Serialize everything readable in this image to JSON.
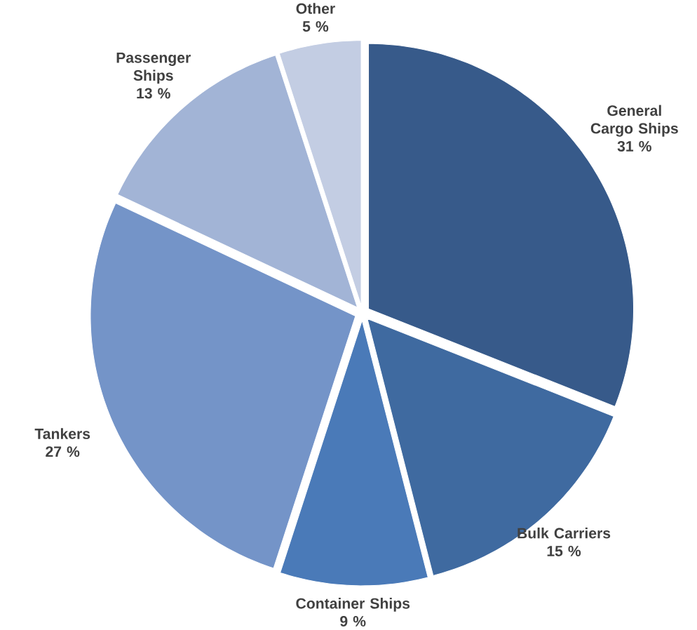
{
  "chart_data": {
    "type": "pie",
    "categories": [
      "General Cargo Ships",
      "Bulk Carriers",
      "Container Ships",
      "Tankers",
      "Passenger Ships",
      "Other"
    ],
    "values": [
      31,
      15,
      9,
      27,
      13,
      5
    ],
    "value_labels": [
      "31 %",
      "15 %",
      "9 %",
      "27 %",
      "13 %",
      "5 %"
    ],
    "colors": [
      "#375a8a",
      "#3f6aa0",
      "#4a7ab8",
      "#7494c8",
      "#a2b4d6",
      "#c3cde3"
    ]
  }
}
